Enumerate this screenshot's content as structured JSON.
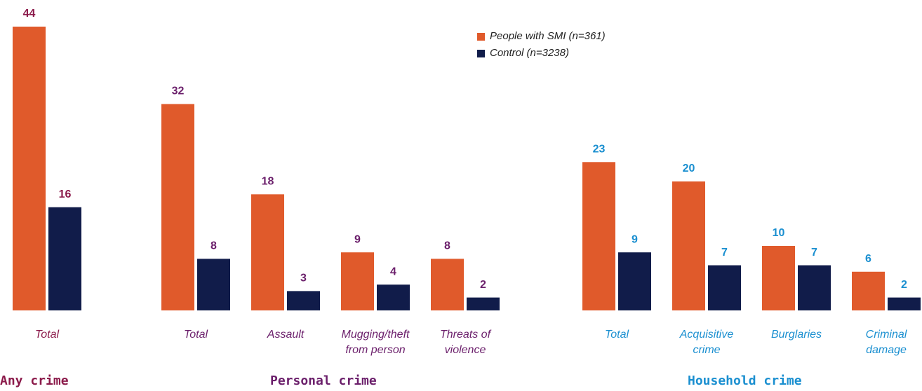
{
  "chart_data": {
    "type": "grouped_bar",
    "series": [
      {
        "name": "People with SMI (n=361)",
        "color": "#e05a2b",
        "values": [
          44,
          32,
          18,
          9,
          8,
          23,
          20,
          10,
          6
        ]
      },
      {
        "name": "Control (n=3238)",
        "color": "#111c4a",
        "values": [
          16,
          8,
          3,
          4,
          2,
          9,
          7,
          7,
          2
        ]
      }
    ],
    "groups": [
      {
        "label": "Any crime",
        "color": "#8b1a4a",
        "categories": [
          [
            "Total"
          ]
        ]
      },
      {
        "label": "Personal crime",
        "color": "#6b1f6b",
        "categories": [
          [
            "Total"
          ],
          [
            "Assault"
          ],
          [
            "Mugging/theft",
            "from person"
          ],
          [
            "Threats of",
            "violence"
          ]
        ]
      },
      {
        "label": "Household crime",
        "color": "#1a8fd0",
        "categories": [
          [
            "Total"
          ],
          [
            "Acquisitive",
            "crime"
          ],
          [
            "Burglaries"
          ],
          [
            "Criminal",
            "damage"
          ]
        ]
      }
    ]
  }
}
